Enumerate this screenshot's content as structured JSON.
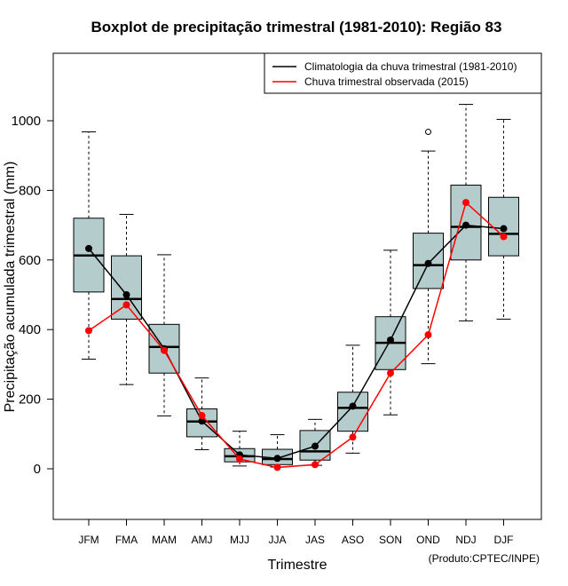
{
  "chart_data": {
    "type": "boxplot",
    "title": "Boxplot de precipitação trimestral (1981-2010): Região 83",
    "xlabel": "Trimestre",
    "ylabel": "Precipitação acumulada trimestral (mm)",
    "credit": "(Produto:CPTEC/INPE)",
    "ylim": [
      -150,
      1150
    ],
    "yticks": [
      0,
      200,
      400,
      600,
      800,
      1000
    ],
    "categories": [
      "JFM",
      "FMA",
      "MAM",
      "AMJ",
      "MJJ",
      "JJA",
      "JAS",
      "ASO",
      "SON",
      "OND",
      "NDJ",
      "DJF"
    ],
    "boxes": [
      {
        "min": 315,
        "q1": 508,
        "median": 613,
        "q3": 720,
        "max": 968,
        "outliers": []
      },
      {
        "min": 242,
        "q1": 430,
        "median": 488,
        "q3": 612,
        "max": 731,
        "outliers": []
      },
      {
        "min": 152,
        "q1": 275,
        "median": 350,
        "q3": 415,
        "max": 615,
        "outliers": []
      },
      {
        "min": 55,
        "q1": 92,
        "median": 136,
        "q3": 172,
        "max": 261,
        "outliers": []
      },
      {
        "min": 8,
        "q1": 20,
        "median": 36,
        "q3": 58,
        "max": 108,
        "outliers": []
      },
      {
        "min": 5,
        "q1": 12,
        "median": 28,
        "q3": 56,
        "max": 98,
        "outliers": []
      },
      {
        "min": 10,
        "q1": 25,
        "median": 50,
        "q3": 110,
        "max": 142,
        "outliers": []
      },
      {
        "min": 45,
        "q1": 108,
        "median": 175,
        "q3": 220,
        "max": 355,
        "outliers": []
      },
      {
        "min": 155,
        "q1": 285,
        "median": 362,
        "q3": 437,
        "max": 628,
        "outliers": []
      },
      {
        "min": 302,
        "q1": 518,
        "median": 585,
        "q3": 677,
        "max": 913,
        "outliers": [
          968
        ]
      },
      {
        "min": 425,
        "q1": 600,
        "median": 695,
        "q3": 815,
        "max": 1047,
        "outliers": []
      },
      {
        "min": 430,
        "q1": 612,
        "median": 675,
        "q3": 780,
        "max": 1004,
        "outliers": []
      }
    ],
    "series": [
      {
        "name": "Climatologia da chuva trimestral (1981-2010)",
        "color": "#000000",
        "values": [
          633,
          500,
          345,
          137,
          40,
          30,
          65,
          180,
          370,
          590,
          700,
          690
        ]
      },
      {
        "name": "Chuva trimestral observada (2015)",
        "color": "#ff0000",
        "values": [
          397,
          471,
          340,
          153,
          28,
          4,
          12,
          91,
          275,
          385,
          765,
          667
        ]
      }
    ],
    "legend_position": "top-right",
    "box_fill": "#b5cccc",
    "grid": false
  }
}
